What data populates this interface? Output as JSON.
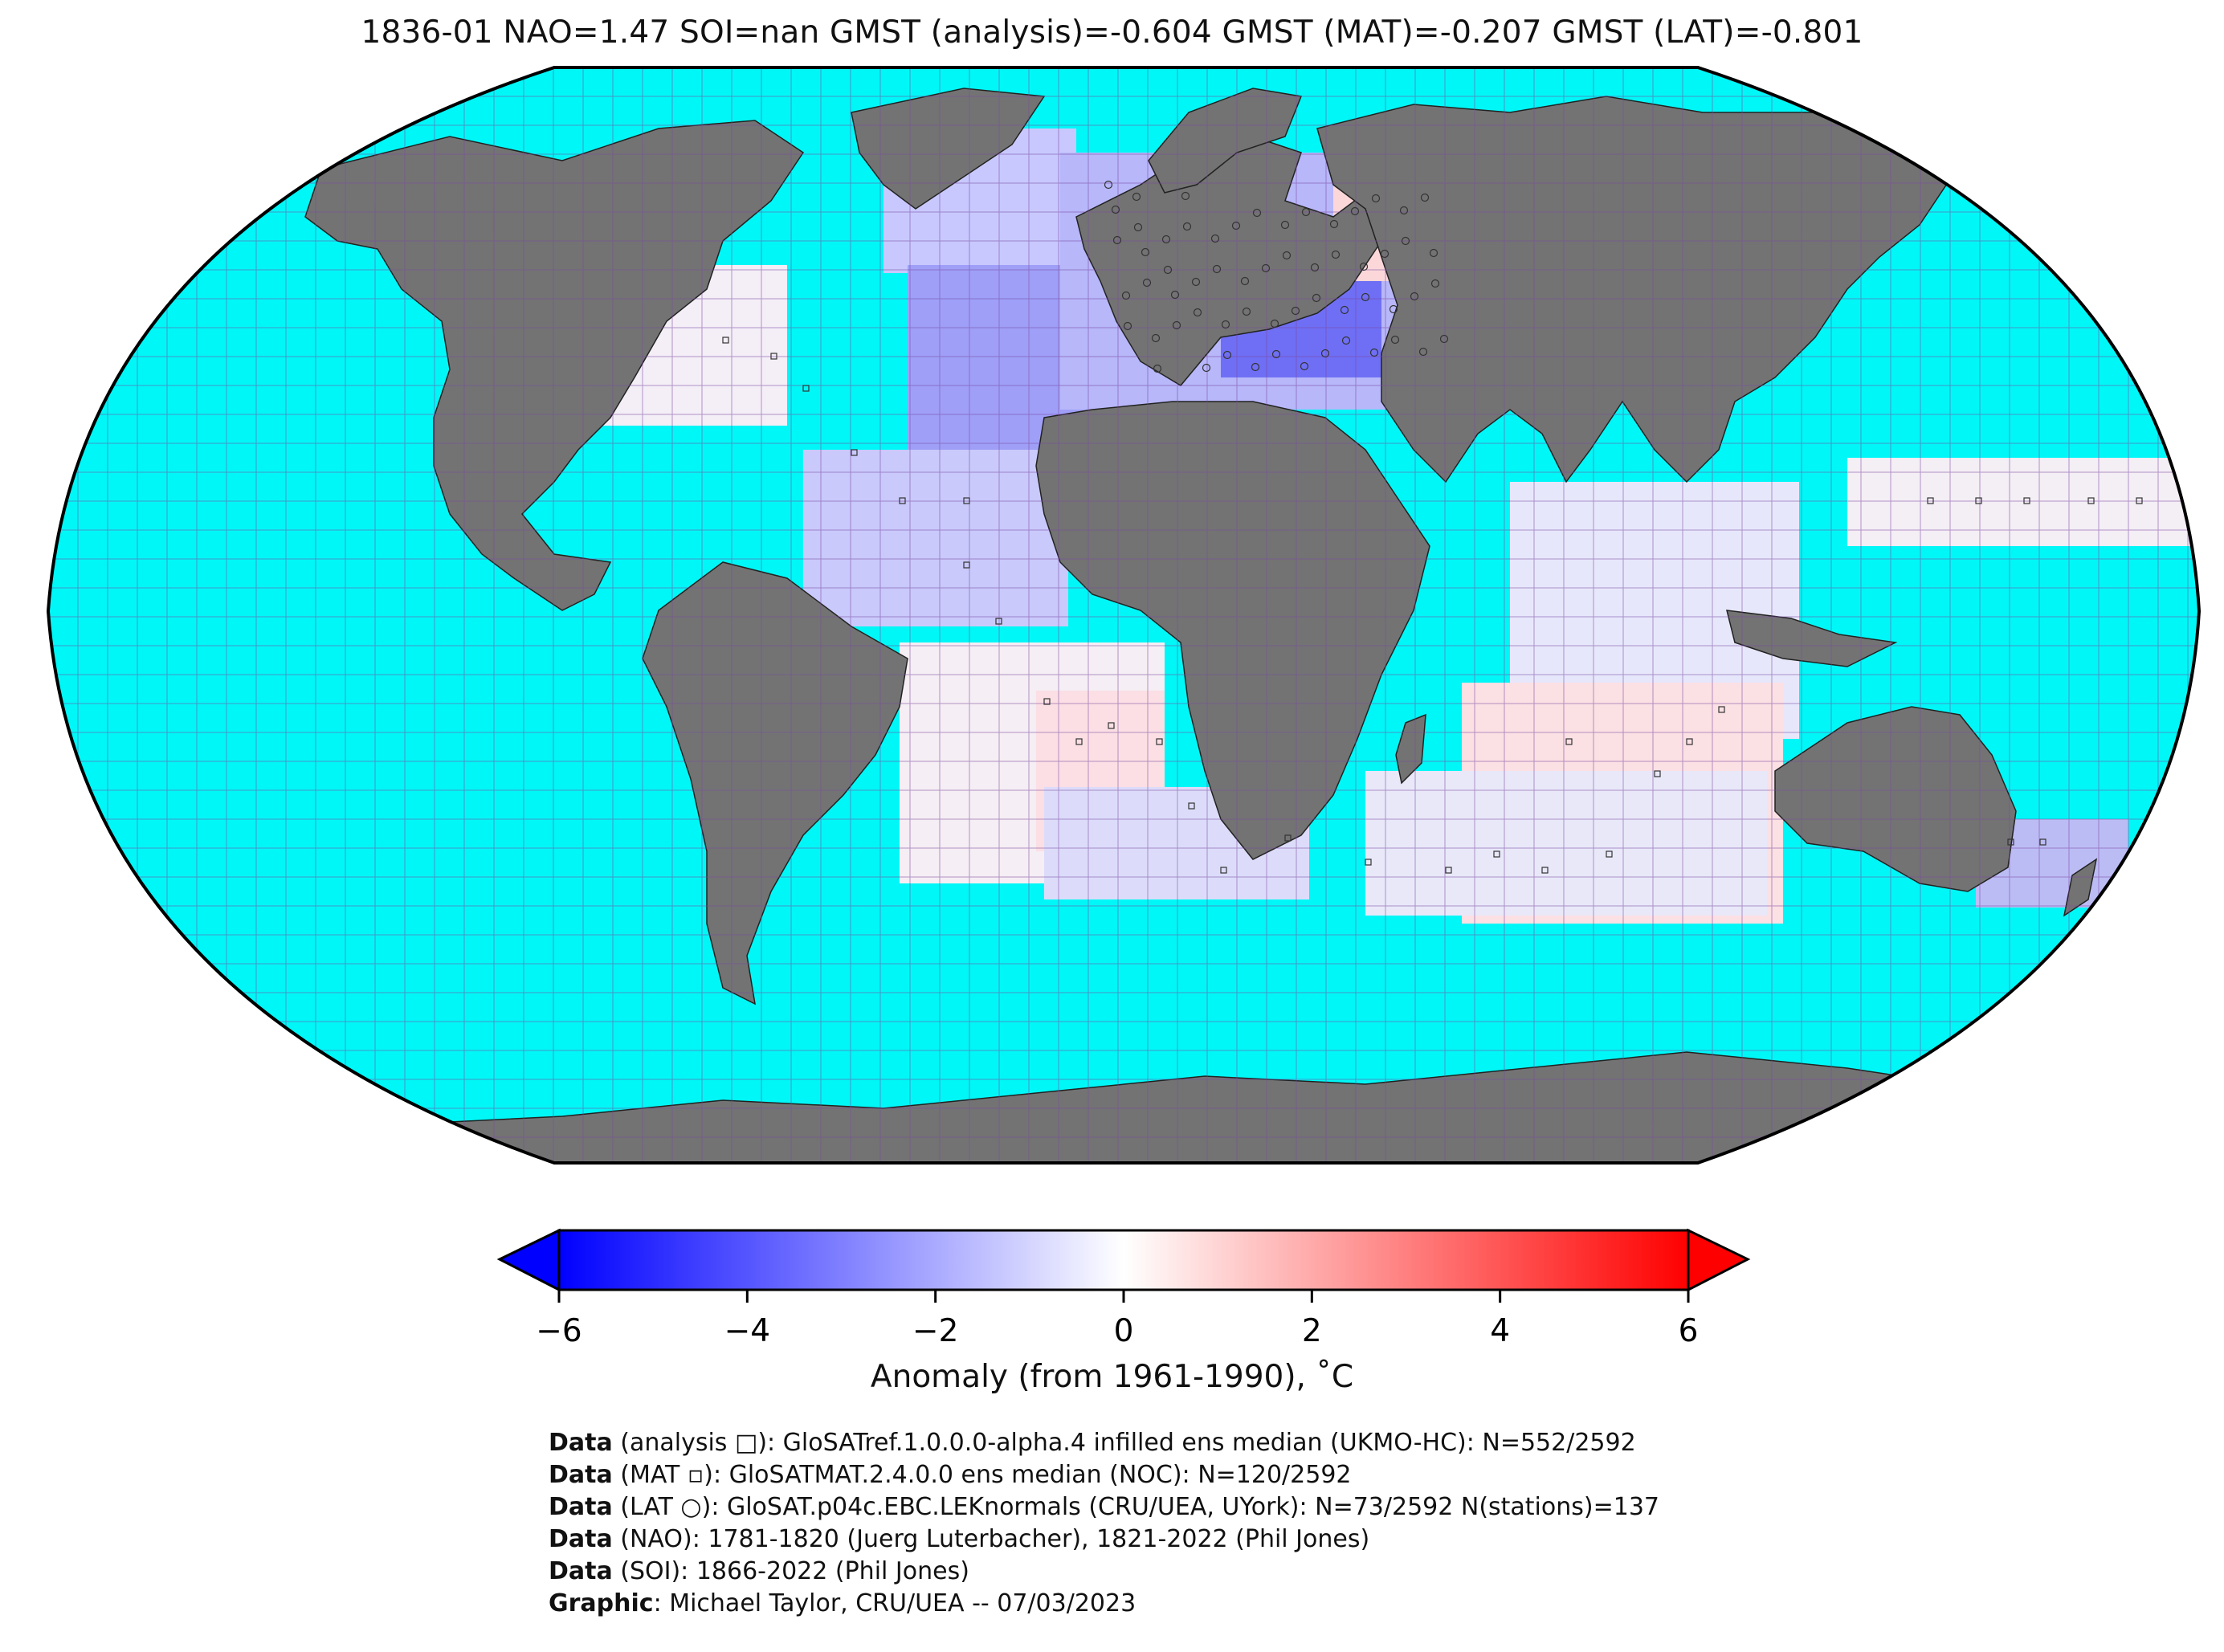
{
  "title": "1836-01 NAO=1.47 SOI=nan GMST (analysis)=-0.604 GMST (MAT)=-0.207 GMST (LAT)=-0.801",
  "map": {
    "projection": "Robinson",
    "ocean_color": "#00f7f7",
    "land_color": "#737373",
    "grid_color": "#7a4aa0",
    "grid_step_deg": 5,
    "coverage_note": "5-degree anomaly cells over North Atlantic, Europe, Indian Ocean and South Atlantic"
  },
  "colorbar": {
    "ticks": [
      "−6",
      "−4",
      "−2",
      "0",
      "2",
      "4",
      "6"
    ],
    "range": [
      -6,
      6
    ],
    "cmap": "bwr",
    "label": "Anomaly (from 1961-1990), ˚C",
    "extend": "both"
  },
  "credits": [
    {
      "bold": "Data",
      "text": " (analysis □): GloSATref.1.0.0.0-alpha.4 infilled ens median (UKMO-HC): N=552/2592"
    },
    {
      "bold": "Data",
      "text": " (MAT ▫): GloSATMAT.2.4.0.0 ens median (NOC): N=120/2592"
    },
    {
      "bold": "Data",
      "text": " (LAT ○): GloSAT.p04c.EBC.LEKnormals (CRU/UEA, UYork): N=73/2592 N(stations)=137"
    },
    {
      "bold": "Data",
      "text": " (NAO): 1781-1820 (Juerg Luterbacher), 1821-2022 (Phil Jones)"
    },
    {
      "bold": "Data",
      "text": " (SOI): 1866-2022 (Phil Jones)"
    },
    {
      "bold": "Graphic",
      "text": ": Michael Taylor, CRU/UEA -- 07/03/2023"
    }
  ]
}
